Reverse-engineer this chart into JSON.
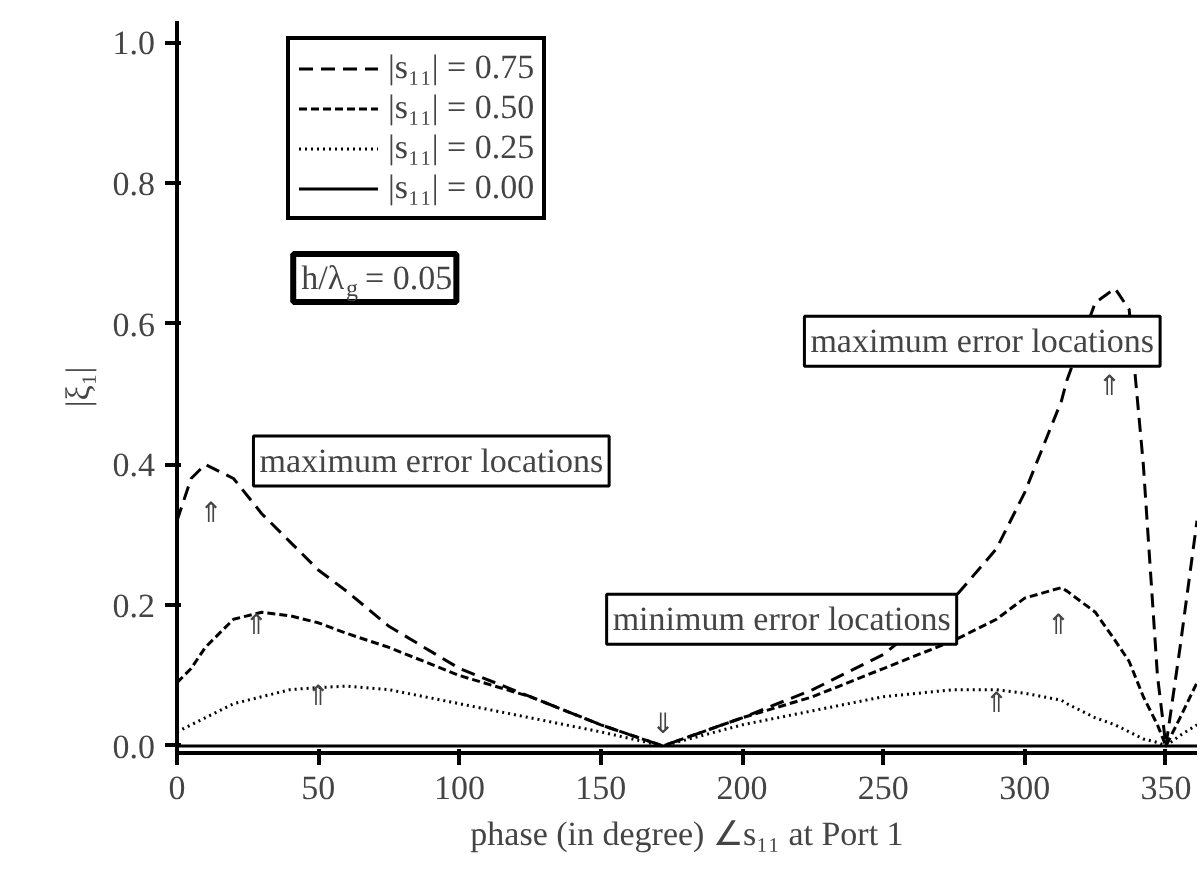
{
  "chart_data": {
    "type": "line",
    "xlabel": "phase (in degree) ∠s₁₁ at Port 1",
    "ylabel": "|ξ₁|",
    "xlim": [
      0,
      361
    ],
    "ylim": [
      -0.01,
      1.03
    ],
    "xticks": [
      0,
      50,
      100,
      150,
      200,
      250,
      300,
      350
    ],
    "yticks": [
      {
        "value": 0,
        "label": "0.0"
      },
      0.2,
      0.4,
      0.6,
      0.8,
      {
        "value": 1,
        "label": "1.0"
      }
    ],
    "grid": false,
    "legend": "top left",
    "marker": "none",
    "x": [
      0,
      5,
      10,
      20,
      30,
      40,
      50,
      60,
      75,
      100,
      125,
      150,
      172,
      200,
      225,
      250,
      275,
      290,
      300,
      313,
      315,
      325,
      332,
      337,
      342,
      347,
      350,
      355,
      361
    ],
    "series": [
      {
        "name": "|s₁₁| = 0.75",
        "color": "#000000",
        "line_style": "dashed",
        "values": [
          0.32,
          0.38,
          0.4,
          0.38,
          0.33,
          0.29,
          0.25,
          0.22,
          0.17,
          0.11,
          0.07,
          0.03,
          0.0,
          0.04,
          0.08,
          0.13,
          0.21,
          0.28,
          0.36,
          0.49,
          0.52,
          0.63,
          0.65,
          0.62,
          0.4,
          0.1,
          0.0,
          0.14,
          0.32
        ]
      },
      {
        "name": "|s₁₁| = 0.50",
        "color": "#000000",
        "line_style": "dashed",
        "values": [
          0.09,
          0.11,
          0.14,
          0.18,
          0.19,
          0.185,
          0.175,
          0.16,
          0.14,
          0.1,
          0.07,
          0.03,
          0.0,
          0.04,
          0.07,
          0.11,
          0.15,
          0.18,
          0.21,
          0.225,
          0.22,
          0.19,
          0.15,
          0.12,
          0.07,
          0.03,
          0.0,
          0.04,
          0.09
        ]
      },
      {
        "name": "|s₁₁| = 0.25",
        "color": "#000000",
        "line_style": "dotted",
        "values": [
          0.02,
          0.03,
          0.04,
          0.06,
          0.07,
          0.08,
          0.083,
          0.085,
          0.08,
          0.06,
          0.04,
          0.02,
          0.0,
          0.03,
          0.05,
          0.07,
          0.08,
          0.08,
          0.075,
          0.065,
          0.06,
          0.04,
          0.03,
          0.02,
          0.01,
          0.005,
          0.0,
          0.015,
          0.03
        ]
      },
      {
        "name": "|s₁₁| = 0.00",
        "color": "#000000",
        "line_style": "solid",
        "values": [
          0,
          0,
          0,
          0,
          0,
          0,
          0,
          0,
          0,
          0,
          0,
          0,
          0,
          0,
          0,
          0,
          0,
          0,
          0,
          0,
          0,
          0,
          0,
          0,
          0,
          0,
          0,
          0,
          0
        ]
      }
    ],
    "annotations": [
      "h/λ$_{g}$ = 0.05",
      "maximum error locations",
      "maximum error locations",
      "minimum error locations",
      "⇑",
      "⇑",
      "⇑",
      "⇓",
      "⇑",
      "⇑",
      "⇑"
    ]
  }
}
